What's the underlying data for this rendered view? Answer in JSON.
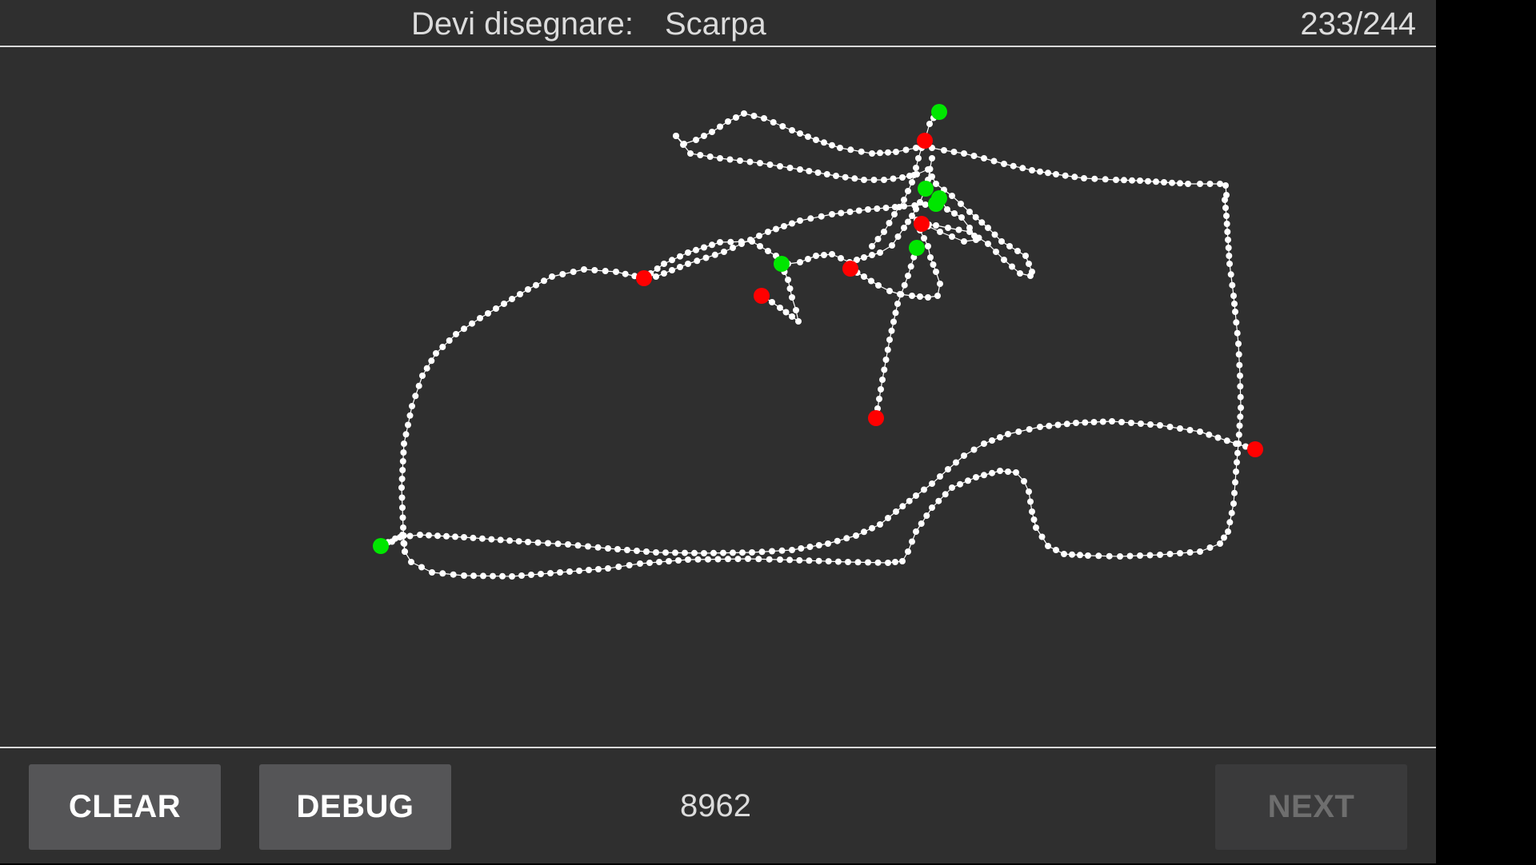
{
  "header": {
    "prompt_label": "Devi disegnare:",
    "prompt_word": "Scarpa",
    "progress": "233/244"
  },
  "footer": {
    "clear_label": "CLEAR",
    "debug_label": "DEBUG",
    "score": "8962",
    "next_label": "NEXT",
    "next_enabled": false
  },
  "colors": {
    "background": "#2f2f2f",
    "stroke": "#ffffff",
    "stroke_start": "#00e600",
    "stroke_end": "#ff0000"
  }
}
